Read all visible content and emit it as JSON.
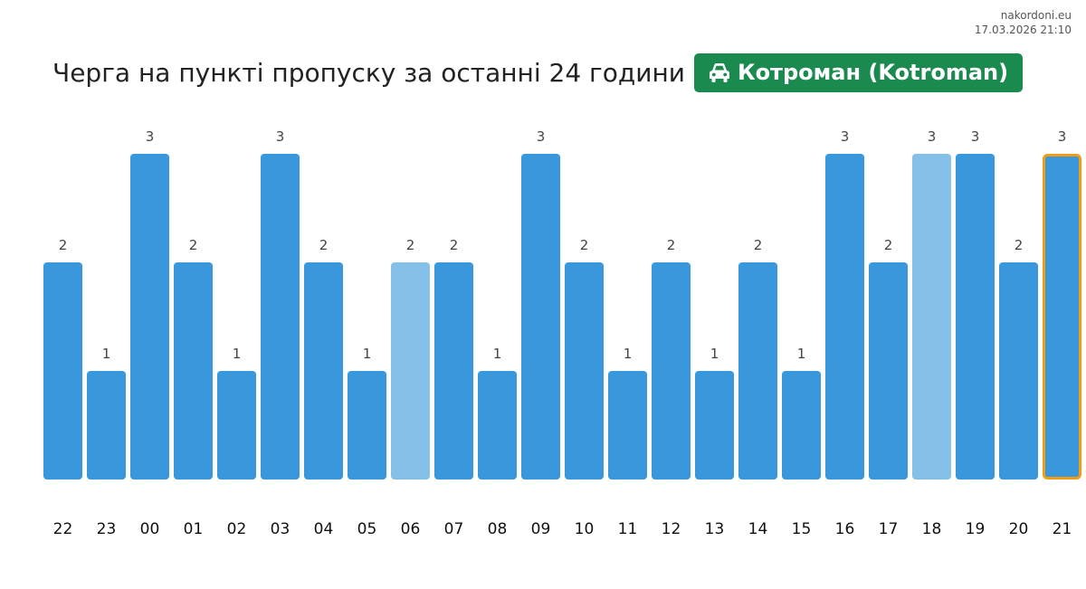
{
  "site": {
    "name": "nakordoni.eu",
    "timestamp": "17.03.2026 21:10"
  },
  "header": {
    "title": "Черга на пункті пропуску за останні 24 години",
    "checkpoint": "Котроман (Kotroman)",
    "checkpoint_icon": "car-icon",
    "badge_color": "#1a8a4f"
  },
  "chart_data": {
    "type": "bar",
    "categories": [
      "22",
      "23",
      "00",
      "01",
      "02",
      "03",
      "04",
      "05",
      "06",
      "07",
      "08",
      "09",
      "10",
      "11",
      "12",
      "13",
      "14",
      "15",
      "16",
      "17",
      "18",
      "19",
      "20",
      "21"
    ],
    "values": [
      2,
      1,
      3,
      2,
      1,
      3,
      2,
      1,
      2,
      2,
      1,
      3,
      2,
      1,
      2,
      1,
      2,
      1,
      3,
      2,
      3,
      3,
      2,
      3
    ],
    "highlighted_categories": [
      "06",
      "18"
    ],
    "current_category": "21",
    "ylim": [
      0,
      3
    ],
    "title": "",
    "xlabel": "",
    "ylabel": "",
    "grid": false,
    "colors": {
      "bar": "#3898db",
      "bar_highlight": "#85c0e8",
      "current_outline": "#f39c12"
    }
  }
}
